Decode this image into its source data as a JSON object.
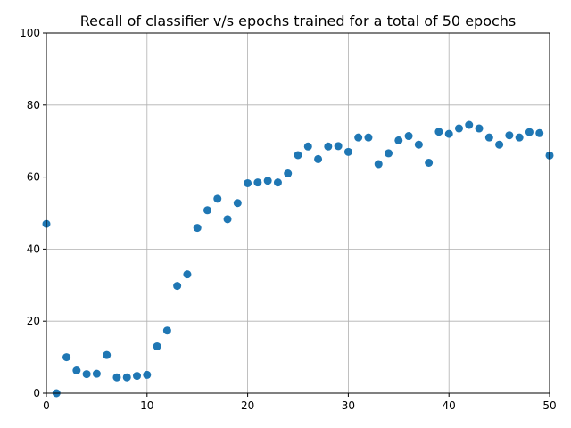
{
  "chart_data": {
    "type": "scatter",
    "title": "Recall of classifier v/s epochs trained for a total of 50 epochs",
    "xlabel": "",
    "ylabel": "",
    "xlim": [
      0,
      50
    ],
    "ylim": [
      0,
      100
    ],
    "xticks": [
      "0",
      "10",
      "20",
      "30",
      "40",
      "50"
    ],
    "yticks": [
      "0",
      "20",
      "40",
      "60",
      "80",
      "100"
    ],
    "grid": true,
    "marker_color": "#1f77b4",
    "x": [
      0,
      1,
      2,
      3,
      4,
      5,
      6,
      7,
      8,
      9,
      10,
      11,
      12,
      13,
      14,
      15,
      16,
      17,
      18,
      19,
      20,
      21,
      22,
      23,
      24,
      25,
      26,
      27,
      28,
      29,
      30,
      31,
      32,
      33,
      34,
      35,
      36,
      37,
      38,
      39,
      40,
      41,
      42,
      43,
      44,
      45,
      46,
      47,
      48,
      49,
      50
    ],
    "y": [
      47.0,
      0.0,
      10.0,
      6.3,
      5.3,
      5.4,
      10.6,
      4.4,
      4.4,
      4.8,
      5.1,
      13.0,
      17.4,
      29.8,
      33.0,
      45.9,
      50.8,
      54.0,
      48.3,
      52.8,
      58.3,
      58.5,
      59.0,
      58.5,
      61.0,
      66.1,
      68.5,
      65.0,
      68.5,
      68.6,
      67.0,
      71.0,
      71.0,
      63.6,
      66.6,
      70.2,
      71.4,
      69.0,
      64.0,
      72.6,
      72.0,
      73.5,
      74.5,
      73.5,
      71.0,
      69.0,
      71.6,
      71.0,
      72.5,
      72.2,
      66.0
    ]
  }
}
